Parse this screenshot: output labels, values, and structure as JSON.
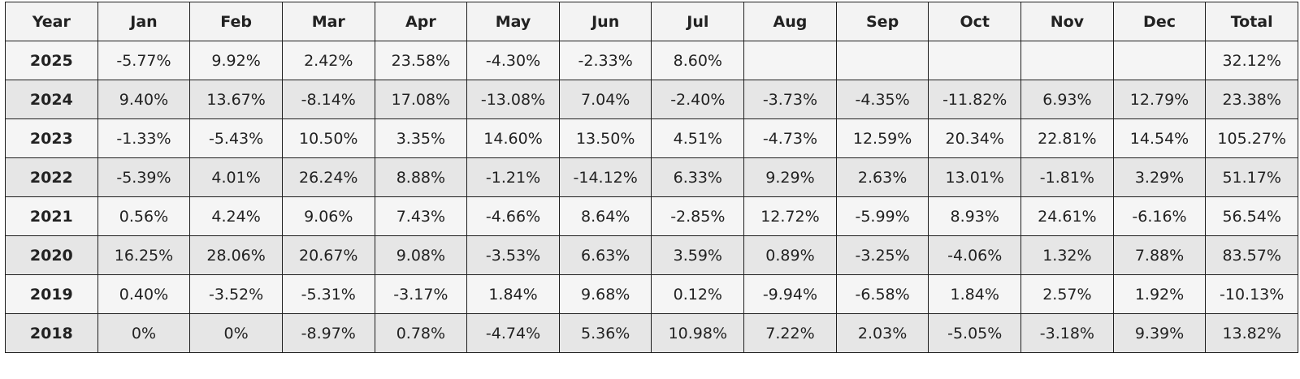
{
  "table": {
    "headers": [
      "Year",
      "Jan",
      "Feb",
      "Mar",
      "Apr",
      "May",
      "Jun",
      "Jul",
      "Aug",
      "Sep",
      "Oct",
      "Nov",
      "Dec",
      "Total"
    ],
    "rows": [
      {
        "year": "2025",
        "months": [
          "-5.77%",
          "9.92%",
          "2.42%",
          "23.58%",
          "-4.30%",
          "-2.33%",
          "8.60%",
          "",
          "",
          "",
          "",
          ""
        ],
        "total": "32.12%"
      },
      {
        "year": "2024",
        "months": [
          "9.40%",
          "13.67%",
          "-8.14%",
          "17.08%",
          "-13.08%",
          "7.04%",
          "-2.40%",
          "-3.73%",
          "-4.35%",
          "-11.82%",
          "6.93%",
          "12.79%"
        ],
        "total": "23.38%"
      },
      {
        "year": "2023",
        "months": [
          "-1.33%",
          "-5.43%",
          "10.50%",
          "3.35%",
          "14.60%",
          "13.50%",
          "4.51%",
          "-4.73%",
          "12.59%",
          "20.34%",
          "22.81%",
          "14.54%"
        ],
        "total": "105.27%"
      },
      {
        "year": "2022",
        "months": [
          "-5.39%",
          "4.01%",
          "26.24%",
          "8.88%",
          "-1.21%",
          "-14.12%",
          "6.33%",
          "9.29%",
          "2.63%",
          "13.01%",
          "-1.81%",
          "3.29%"
        ],
        "total": "51.17%"
      },
      {
        "year": "2021",
        "months": [
          "0.56%",
          "4.24%",
          "9.06%",
          "7.43%",
          "-4.66%",
          "8.64%",
          "-2.85%",
          "12.72%",
          "-5.99%",
          "8.93%",
          "24.61%",
          "-6.16%"
        ],
        "total": "56.54%"
      },
      {
        "year": "2020",
        "months": [
          "16.25%",
          "28.06%",
          "20.67%",
          "9.08%",
          "-3.53%",
          "6.63%",
          "3.59%",
          "0.89%",
          "-3.25%",
          "-4.06%",
          "1.32%",
          "7.88%"
        ],
        "total": "83.57%"
      },
      {
        "year": "2019",
        "months": [
          "0.40%",
          "-3.52%",
          "-5.31%",
          "-3.17%",
          "1.84%",
          "9.68%",
          "0.12%",
          "-9.94%",
          "-6.58%",
          "1.84%",
          "2.57%",
          "1.92%"
        ],
        "total": "-10.13%"
      },
      {
        "year": "2018",
        "months": [
          "0%",
          "0%",
          "-8.97%",
          "0.78%",
          "-4.74%",
          "5.36%",
          "10.98%",
          "7.22%",
          "2.03%",
          "-5.05%",
          "-3.18%",
          "9.39%"
        ],
        "total": "13.82%"
      }
    ]
  },
  "colors": {
    "border": "#1f1f1f",
    "header_bg": "#f3f3f3",
    "row_light": "#f5f5f5",
    "row_dark": "#e6e6e6",
    "text": "#222222"
  }
}
